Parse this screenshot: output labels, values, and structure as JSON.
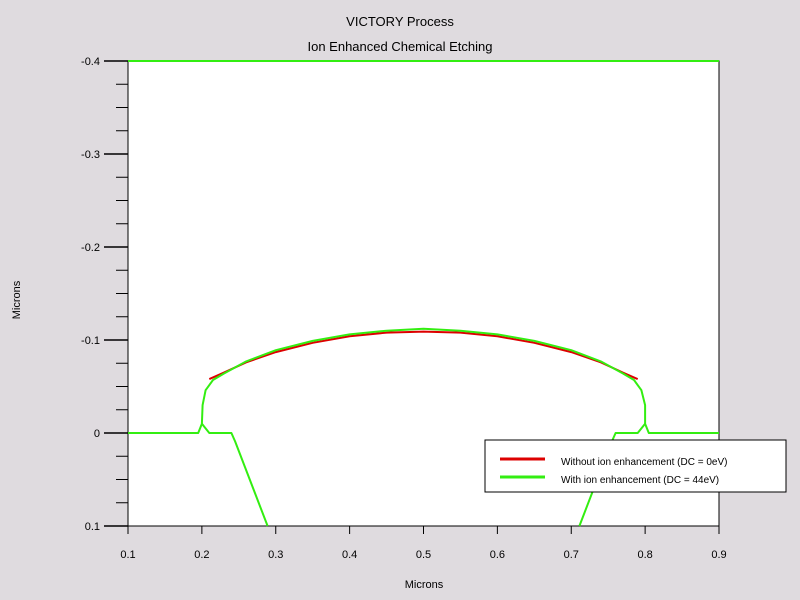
{
  "chart_data": {
    "type": "line",
    "title": "VICTORY Process",
    "subtitle": "Ion Enhanced Chemical Etching",
    "xlabel": "Microns",
    "ylabel": "Microns",
    "xlim": [
      0.1,
      0.9
    ],
    "ylim": [
      0.1,
      -0.4
    ],
    "x_ticks": [
      "0.1",
      "0.2",
      "0.3",
      "0.4",
      "0.5",
      "0.6",
      "0.7",
      "0.8",
      "0.9"
    ],
    "y_ticks": [
      "-0.4",
      "-0.3",
      "-0.2",
      "-0.1",
      "0",
      "0.1"
    ],
    "legend_position": "right",
    "colors": {
      "without": "#dd0000",
      "with": "#33ee11"
    },
    "series": [
      {
        "name": "Without ion enhancement (DC = 0eV)",
        "color": "#dd0000",
        "x": [
          0.21,
          0.23,
          0.26,
          0.3,
          0.35,
          0.4,
          0.45,
          0.5,
          0.55,
          0.6,
          0.65,
          0.7,
          0.74,
          0.77,
          0.79
        ],
        "y": [
          -0.058,
          -0.065,
          -0.076,
          -0.087,
          -0.097,
          -0.104,
          -0.108,
          -0.109,
          -0.108,
          -0.104,
          -0.097,
          -0.087,
          -0.076,
          -0.065,
          -0.058
        ]
      },
      {
        "name": "With ion enhancement (DC = 44eV)",
        "color": "#33ee11",
        "outline": [
          {
            "x": [
              0.1,
              0.9
            ],
            "y": [
              -0.4,
              -0.4
            ]
          },
          {
            "x": [
              0.1,
              0.195,
              0.2,
              0.201,
              0.205,
              0.215,
              0.23,
              0.26,
              0.3,
              0.35,
              0.4,
              0.45,
              0.5,
              0.55,
              0.6,
              0.65,
              0.7,
              0.74,
              0.77,
              0.785,
              0.795,
              0.8,
              0.8,
              0.805,
              0.9
            ],
            "y": [
              0,
              0,
              -0.01,
              -0.03,
              -0.046,
              -0.057,
              -0.064,
              -0.077,
              -0.089,
              -0.099,
              -0.106,
              -0.11,
              -0.112,
              -0.11,
              -0.106,
              -0.099,
              -0.089,
              -0.077,
              -0.064,
              -0.057,
              -0.046,
              -0.03,
              -0.01,
              0,
              0
            ]
          },
          {
            "x": [
              0.2,
              0.21,
              0.24,
              0.245,
              0.289
            ],
            "y": [
              -0.01,
              0,
              0,
              0.009,
              0.1
            ]
          },
          {
            "x": [
              0.8,
              0.79,
              0.76,
              0.755,
              0.711
            ],
            "y": [
              -0.01,
              0,
              0,
              0.009,
              0.1
            ]
          }
        ]
      }
    ]
  }
}
